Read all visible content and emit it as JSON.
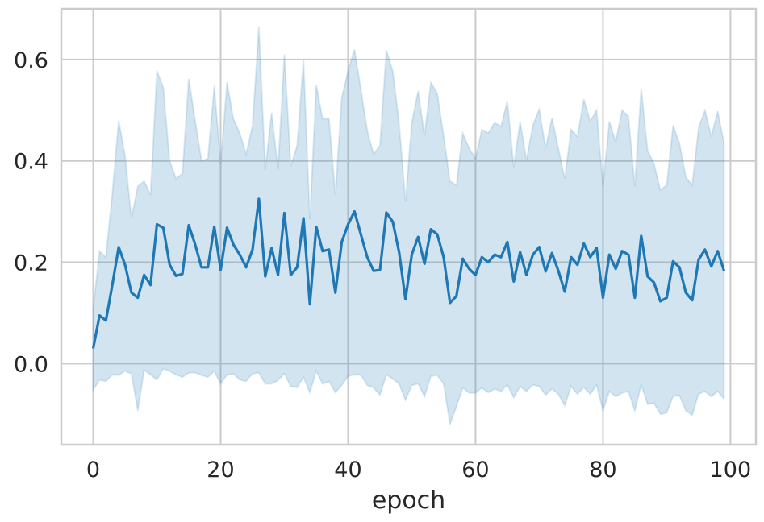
{
  "chart_data": {
    "type": "line",
    "title": "",
    "xlabel": "epoch",
    "ylabel": "",
    "xlim": [
      -5,
      104
    ],
    "ylim": [
      -0.16,
      0.7
    ],
    "xticks": [
      0,
      20,
      40,
      60,
      80,
      100
    ],
    "yticks": [
      0.0,
      0.2,
      0.4,
      0.6
    ],
    "xtick_labels": [
      "0",
      "20",
      "40",
      "60",
      "80",
      "100"
    ],
    "ytick_labels": [
      "0.0",
      "0.2",
      "0.4",
      "0.6"
    ],
    "grid": true,
    "legend": "none",
    "colors": {
      "line": "#1f77b4",
      "band": "#1f77b4",
      "grid": "#cccccc",
      "frame": "#cccccc"
    },
    "series": [
      {
        "x": [
          0,
          1,
          2,
          3,
          4,
          5,
          6,
          7,
          8,
          9,
          10,
          11,
          12,
          13,
          14,
          15,
          16,
          17,
          18,
          19,
          20,
          21,
          22,
          23,
          24,
          25,
          26,
          27,
          28,
          29,
          30,
          31,
          32,
          33,
          34,
          35,
          36,
          37,
          38,
          39,
          40,
          41,
          42,
          43,
          44,
          45,
          46,
          47,
          48,
          49,
          50,
          51,
          52,
          53,
          54,
          55,
          56,
          57,
          58,
          59,
          60,
          61,
          62,
          63,
          64,
          65,
          66,
          67,
          68,
          69,
          70,
          71,
          72,
          73,
          74,
          75,
          76,
          77,
          78,
          79,
          80,
          81,
          82,
          83,
          84,
          85,
          86,
          87,
          88,
          89,
          90,
          91,
          92,
          93,
          94,
          95,
          96,
          97,
          98,
          99
        ],
        "mean": [
          0.03,
          0.095,
          0.085,
          0.155,
          0.23,
          0.195,
          0.14,
          0.13,
          0.175,
          0.155,
          0.275,
          0.268,
          0.195,
          0.173,
          0.177,
          0.273,
          0.235,
          0.19,
          0.19,
          0.27,
          0.185,
          0.268,
          0.235,
          0.215,
          0.19,
          0.225,
          0.325,
          0.172,
          0.228,
          0.175,
          0.297,
          0.175,
          0.19,
          0.287,
          0.117,
          0.27,
          0.222,
          0.225,
          0.14,
          0.24,
          0.275,
          0.3,
          0.255,
          0.21,
          0.183,
          0.185,
          0.298,
          0.28,
          0.22,
          0.127,
          0.215,
          0.25,
          0.197,
          0.265,
          0.255,
          0.21,
          0.12,
          0.133,
          0.207,
          0.187,
          0.175,
          0.21,
          0.2,
          0.215,
          0.21,
          0.24,
          0.162,
          0.22,
          0.175,
          0.215,
          0.23,
          0.182,
          0.218,
          0.183,
          0.142,
          0.21,
          0.195,
          0.237,
          0.21,
          0.228,
          0.13,
          0.215,
          0.187,
          0.222,
          0.215,
          0.13,
          0.252,
          0.172,
          0.16,
          0.123,
          0.13,
          0.202,
          0.19,
          0.14,
          0.125,
          0.205,
          0.225,
          0.192,
          0.222,
          0.183
        ],
        "upper": [
          0.11,
          0.222,
          0.21,
          0.335,
          0.48,
          0.41,
          0.287,
          0.35,
          0.36,
          0.333,
          0.578,
          0.545,
          0.4,
          0.365,
          0.375,
          0.562,
          0.48,
          0.4,
          0.405,
          0.548,
          0.395,
          0.555,
          0.483,
          0.455,
          0.413,
          0.47,
          0.665,
          0.383,
          0.495,
          0.383,
          0.61,
          0.39,
          0.43,
          0.6,
          0.285,
          0.55,
          0.483,
          0.483,
          0.333,
          0.525,
          0.578,
          0.62,
          0.542,
          0.46,
          0.413,
          0.43,
          0.618,
          0.578,
          0.475,
          0.32,
          0.475,
          0.538,
          0.45,
          0.555,
          0.533,
          0.45,
          0.36,
          0.352,
          0.455,
          0.425,
          0.405,
          0.462,
          0.455,
          0.475,
          0.468,
          0.518,
          0.388,
          0.478,
          0.402,
          0.47,
          0.502,
          0.425,
          0.485,
          0.425,
          0.365,
          0.462,
          0.448,
          0.522,
          0.478,
          0.5,
          0.35,
          0.478,
          0.438,
          0.5,
          0.488,
          0.35,
          0.543,
          0.42,
          0.395,
          0.343,
          0.352,
          0.47,
          0.435,
          0.368,
          0.352,
          0.465,
          0.5,
          0.448,
          0.498,
          0.435
        ],
        "lower": [
          -0.052,
          -0.032,
          -0.035,
          -0.022,
          -0.023,
          -0.015,
          -0.02,
          -0.093,
          -0.013,
          -0.022,
          -0.032,
          -0.01,
          -0.015,
          -0.022,
          -0.027,
          -0.018,
          -0.018,
          -0.023,
          -0.027,
          -0.015,
          -0.04,
          -0.022,
          -0.02,
          -0.032,
          -0.035,
          -0.02,
          -0.018,
          -0.04,
          -0.04,
          -0.033,
          -0.02,
          -0.045,
          -0.047,
          -0.027,
          -0.057,
          -0.015,
          -0.04,
          -0.035,
          -0.057,
          -0.043,
          -0.025,
          -0.022,
          -0.022,
          -0.043,
          -0.048,
          -0.062,
          -0.022,
          -0.03,
          -0.04,
          -0.072,
          -0.043,
          -0.04,
          -0.065,
          -0.025,
          -0.023,
          -0.04,
          -0.12,
          -0.085,
          -0.048,
          -0.058,
          -0.058,
          -0.048,
          -0.057,
          -0.05,
          -0.055,
          -0.042,
          -0.067,
          -0.045,
          -0.055,
          -0.042,
          -0.045,
          -0.062,
          -0.05,
          -0.06,
          -0.083,
          -0.045,
          -0.06,
          -0.047,
          -0.06,
          -0.043,
          -0.093,
          -0.055,
          -0.065,
          -0.058,
          -0.055,
          -0.093,
          -0.042,
          -0.08,
          -0.078,
          -0.1,
          -0.097,
          -0.065,
          -0.063,
          -0.093,
          -0.102,
          -0.06,
          -0.055,
          -0.065,
          -0.055,
          -0.07
        ]
      }
    ]
  }
}
